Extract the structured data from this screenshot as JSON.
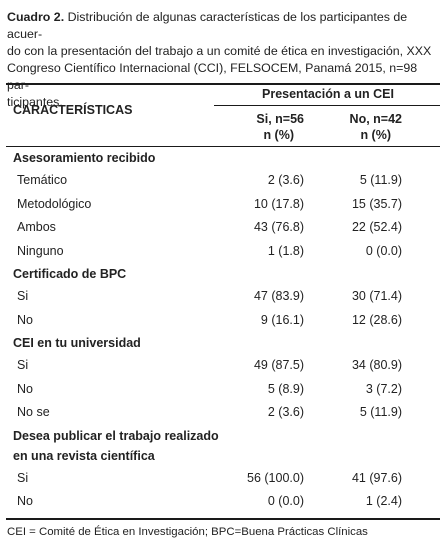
{
  "caption": {
    "label": "Cuadro 2.",
    "lines": [
      " Distribución de algunas características de los participantes de acuer-",
      "do con la presentación del trabajo a un comité de ética en investigación, XXX",
      "Congreso Científico Internacional (CCI), FELSOCEM, Panamá 2015, n=98 par-",
      "ticipantes."
    ]
  },
  "table": {
    "characteristics_header": "CARACTERÍSTICAS",
    "group_header": "Presentación a un CEI",
    "col1_header_line1": "Si, n=56",
    "col1_header_line2": "n (%)",
    "col2_header_line1": "No, n=42",
    "col2_header_line2": "n (%)",
    "sections": [
      {
        "title_lines": [
          "Asesoramiento recibido"
        ],
        "rows": [
          {
            "label": "Temático",
            "si": "2 (3.6)",
            "no": "5 (11.9)"
          },
          {
            "label": "Metodológico",
            "si": "10 (17.8)",
            "no": "15 (35.7)"
          },
          {
            "label": "Ambos",
            "si": "43 (76.8)",
            "no": "22 (52.4)"
          },
          {
            "label": "Ninguno",
            "si": "1 (1.8)",
            "no": "0 (0.0)"
          }
        ]
      },
      {
        "title_lines": [
          "Certificado de BPC"
        ],
        "rows": [
          {
            "label": "Si",
            "si": "47 (83.9)",
            "no": "30 (71.4)"
          },
          {
            "label": "No",
            "si": "9 (16.1)",
            "no": "12 (28.6)"
          }
        ]
      },
      {
        "title_lines": [
          "CEI en tu universidad"
        ],
        "rows": [
          {
            "label": "Si",
            "si": "49 (87.5)",
            "no": "34 (80.9)"
          },
          {
            "label": "No",
            "si": "5 (8.9)",
            "no": "3 (7.2)"
          },
          {
            "label": "No se",
            "si": "2 (3.6)",
            "no": "5 (11.9)"
          }
        ]
      },
      {
        "title_lines": [
          "Desea publicar el trabajo realizado",
          "en una revista científica"
        ],
        "rows": [
          {
            "label": "Si",
            "si": "56 (100.0)",
            "no": "41 (97.6)"
          },
          {
            "label": "No",
            "si": "0 (0.0)",
            "no": "1 (2.4)"
          }
        ]
      }
    ]
  },
  "footer": "CEI = Comité de Ética en Investigación; BPC=Buena Prácticas Clínicas"
}
